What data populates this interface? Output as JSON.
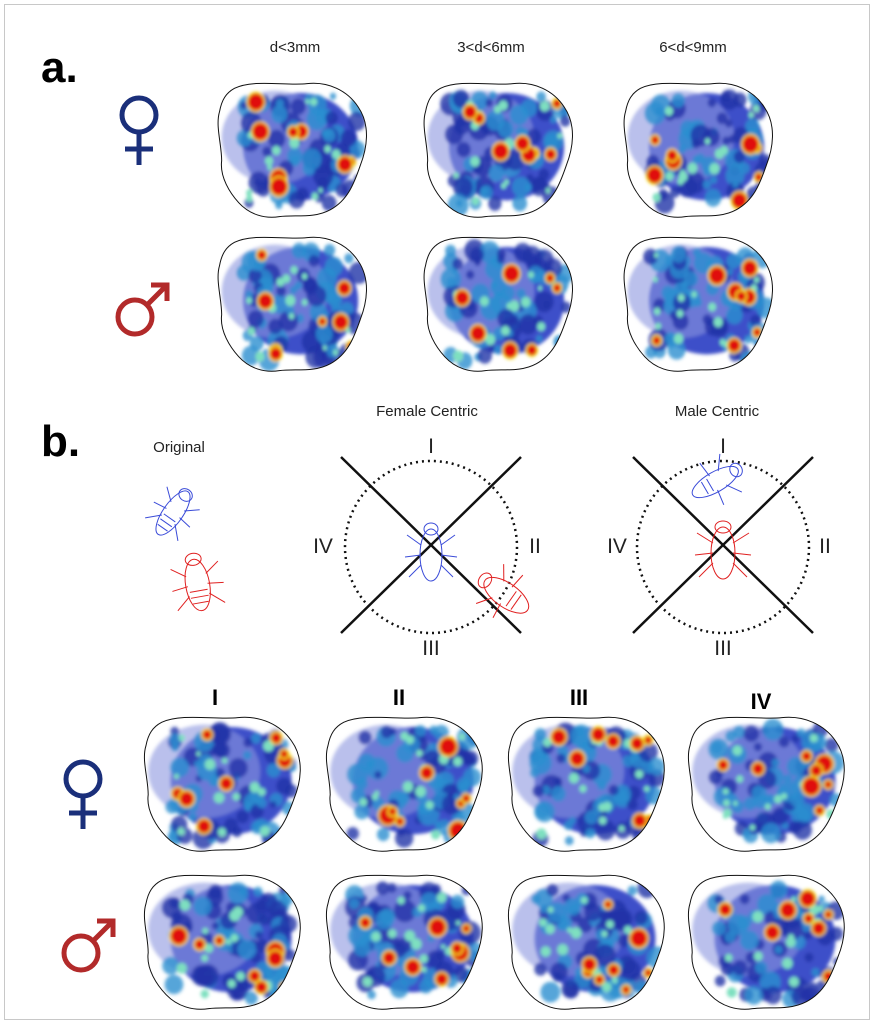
{
  "panel_a": {
    "letter": "a.",
    "columns": [
      "d<3mm",
      "3<d<6mm",
      "6<d<9mm"
    ],
    "row_symbols": [
      {
        "symbol": "♀",
        "color": "#1a2f7a"
      },
      {
        "symbol": "♂",
        "color": "#b22a2a"
      }
    ]
  },
  "panel_b": {
    "letter": "b.",
    "original_label": "Original",
    "female_centric_label": "Female Centric",
    "male_centric_label": "Male Centric",
    "quadrants": [
      "I",
      "II",
      "III",
      "IV"
    ],
    "columns": [
      "I",
      "II",
      "III",
      "IV"
    ],
    "row_symbols": [
      {
        "symbol": "♀",
        "color": "#1a2f7a"
      },
      {
        "symbol": "♂",
        "color": "#b22a2a"
      }
    ],
    "fly_colors": {
      "female": "#3a4bd8",
      "male": "#e02020"
    }
  },
  "heatmap_colors": [
    "#dfe3f5",
    "#8c96e0",
    "#3d4fc9",
    "#2233a8",
    "#2a8fd0",
    "#7ee0c0",
    "#f4e020",
    "#ff7a00",
    "#e01010",
    "#b00000"
  ]
}
